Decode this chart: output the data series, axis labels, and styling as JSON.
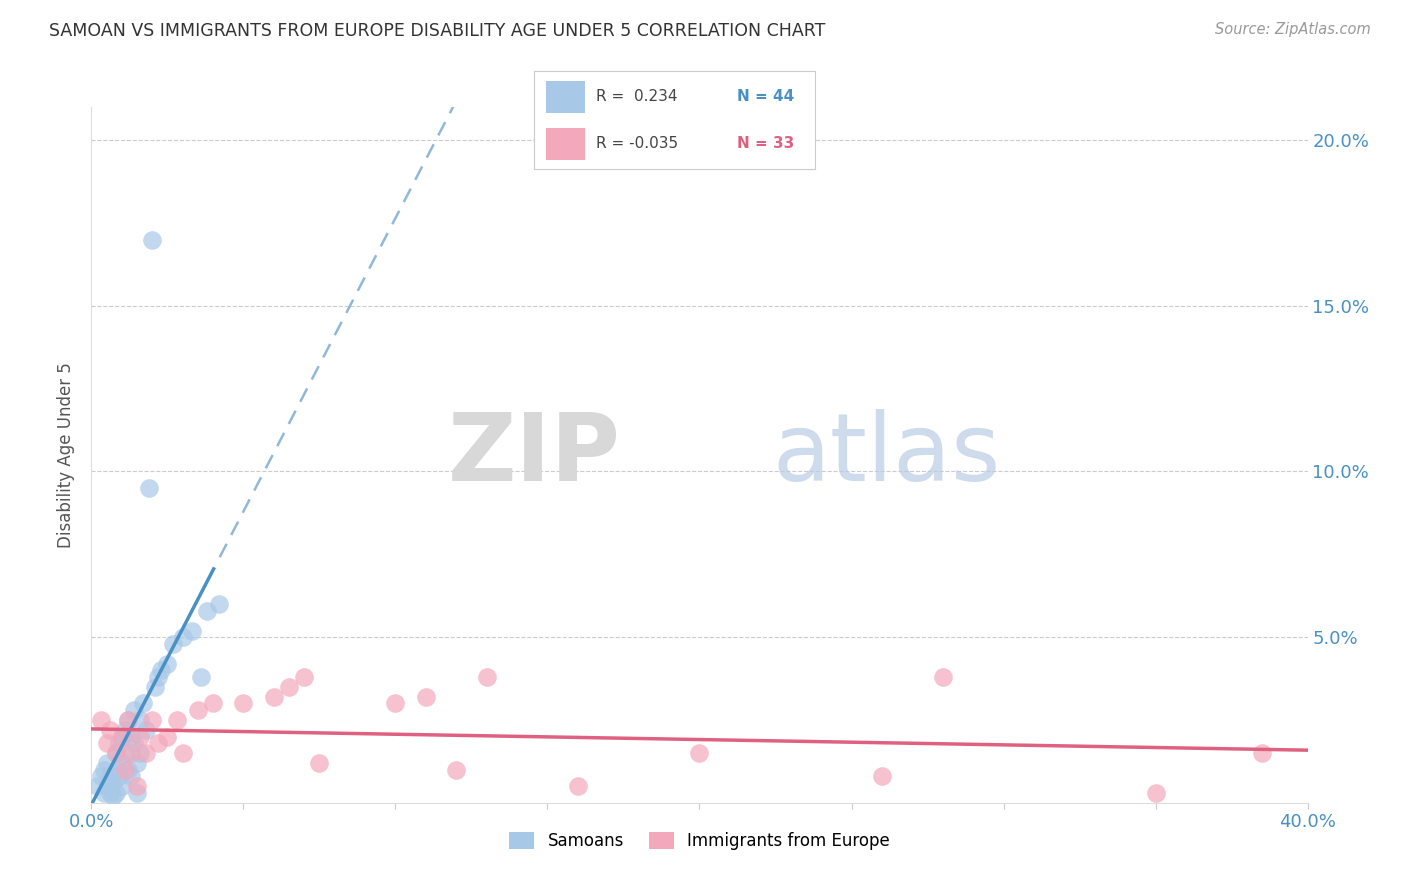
{
  "title": "SAMOAN VS IMMIGRANTS FROM EUROPE DISABILITY AGE UNDER 5 CORRELATION CHART",
  "source": "Source: ZipAtlas.com",
  "ylabel": "Disability Age Under 5",
  "xlim": [
    0.0,
    0.4
  ],
  "ylim": [
    0.0,
    0.21
  ],
  "xticks": [
    0.0,
    0.05,
    0.1,
    0.15,
    0.2,
    0.25,
    0.3,
    0.35,
    0.4
  ],
  "ytick_positions": [
    0.0,
    0.05,
    0.1,
    0.15,
    0.2
  ],
  "ytick_labels_right": [
    "",
    "5.0%",
    "10.0%",
    "15.0%",
    "20.0%"
  ],
  "color_samoan": "#A8C8E8",
  "color_europe": "#F4A8BB",
  "color_samoan_line": "#4A90C4",
  "color_europe_line": "#E06080",
  "color_samoan_dash": "#90B8D8",
  "samoans_x": [
    0.002,
    0.003,
    0.004,
    0.004,
    0.005,
    0.005,
    0.006,
    0.006,
    0.007,
    0.007,
    0.008,
    0.008,
    0.008,
    0.009,
    0.009,
    0.01,
    0.01,
    0.01,
    0.011,
    0.011,
    0.012,
    0.012,
    0.013,
    0.013,
    0.014,
    0.014,
    0.015,
    0.015,
    0.016,
    0.016,
    0.017,
    0.018,
    0.019,
    0.02,
    0.021,
    0.022,
    0.023,
    0.025,
    0.027,
    0.03,
    0.033,
    0.036,
    0.038,
    0.042
  ],
  "samoans_y": [
    0.005,
    0.008,
    0.003,
    0.01,
    0.005,
    0.012,
    0.003,
    0.008,
    0.002,
    0.006,
    0.01,
    0.015,
    0.003,
    0.008,
    0.018,
    0.012,
    0.02,
    0.005,
    0.015,
    0.022,
    0.01,
    0.025,
    0.008,
    0.02,
    0.018,
    0.028,
    0.012,
    0.003,
    0.025,
    0.015,
    0.03,
    0.022,
    0.095,
    0.17,
    0.035,
    0.038,
    0.04,
    0.042,
    0.048,
    0.05,
    0.052,
    0.038,
    0.058,
    0.06
  ],
  "europe_x": [
    0.003,
    0.005,
    0.006,
    0.008,
    0.01,
    0.011,
    0.012,
    0.013,
    0.015,
    0.016,
    0.018,
    0.02,
    0.022,
    0.025,
    0.028,
    0.03,
    0.035,
    0.04,
    0.05,
    0.06,
    0.065,
    0.07,
    0.075,
    0.1,
    0.11,
    0.12,
    0.13,
    0.16,
    0.2,
    0.26,
    0.28,
    0.35,
    0.385
  ],
  "europe_y": [
    0.025,
    0.018,
    0.022,
    0.015,
    0.02,
    0.01,
    0.025,
    0.015,
    0.005,
    0.02,
    0.015,
    0.025,
    0.018,
    0.02,
    0.025,
    0.015,
    0.028,
    0.03,
    0.03,
    0.032,
    0.035,
    0.038,
    0.012,
    0.03,
    0.032,
    0.01,
    0.038,
    0.005,
    0.015,
    0.008,
    0.038,
    0.003,
    0.015
  ],
  "background_color": "#FFFFFF",
  "watermark_zip": "ZIP",
  "watermark_atlas": "atlas",
  "legend_r1_label": "R = ",
  "legend_r1_val": " 0.234",
  "legend_r1_n": "N = 44",
  "legend_r2_label": "R = ",
  "legend_r2_val": "-0.035",
  "legend_r2_n": "N = 33"
}
